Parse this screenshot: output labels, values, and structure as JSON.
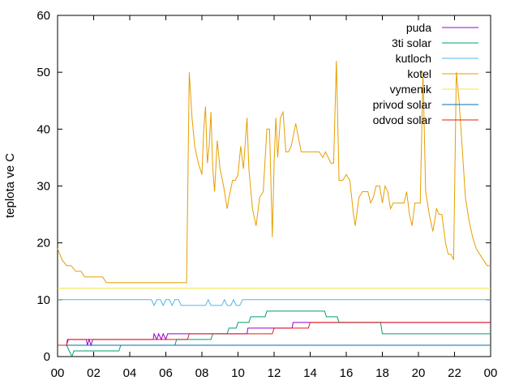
{
  "chart_data": {
    "type": "line",
    "ylabel": "teplota ve C",
    "xlabel": "",
    "title": "",
    "x_range_hours": [
      0,
      24
    ],
    "ylim": [
      0,
      60
    ],
    "x_tick_labels": [
      "00",
      "02",
      "04",
      "06",
      "08",
      "10",
      "12",
      "14",
      "16",
      "18",
      "20",
      "22",
      "00"
    ],
    "y_tick_labels": [
      "0",
      "10",
      "20",
      "30",
      "40",
      "50",
      "60"
    ],
    "grid": false,
    "legend_position": "top-right",
    "series": [
      {
        "name": "puda",
        "color": "#9400d3",
        "points": [
          [
            0.0,
            2
          ],
          [
            0.5,
            2
          ],
          [
            0.55,
            3
          ],
          [
            1.6,
            3
          ],
          [
            1.65,
            2
          ],
          [
            1.75,
            3
          ],
          [
            1.85,
            2
          ],
          [
            1.95,
            3
          ],
          [
            5.3,
            3
          ],
          [
            5.35,
            4
          ],
          [
            5.5,
            3
          ],
          [
            5.6,
            4
          ],
          [
            5.75,
            3
          ],
          [
            5.85,
            4
          ],
          [
            6.0,
            3
          ],
          [
            6.1,
            4
          ],
          [
            10.5,
            4
          ],
          [
            10.55,
            5
          ],
          [
            11.0,
            5
          ],
          [
            11.05,
            5
          ],
          [
            13.0,
            5
          ],
          [
            13.05,
            6
          ],
          [
            14.0,
            6
          ],
          [
            14.05,
            6
          ],
          [
            24.0,
            6
          ]
        ]
      },
      {
        "name": "3ti solar",
        "color": "#009e73",
        "points": [
          [
            0.0,
            2
          ],
          [
            0.5,
            2
          ],
          [
            0.8,
            0
          ],
          [
            0.9,
            1
          ],
          [
            3.4,
            1
          ],
          [
            3.5,
            2
          ],
          [
            6.5,
            2
          ],
          [
            6.6,
            3
          ],
          [
            8.5,
            3
          ],
          [
            8.6,
            4
          ],
          [
            9.4,
            4
          ],
          [
            9.5,
            5
          ],
          [
            9.9,
            5
          ],
          [
            10.0,
            6
          ],
          [
            10.6,
            6
          ],
          [
            10.7,
            7
          ],
          [
            11.5,
            7
          ],
          [
            11.6,
            8
          ],
          [
            14.8,
            8
          ],
          [
            14.9,
            7
          ],
          [
            15.5,
            7
          ],
          [
            15.6,
            6
          ],
          [
            17.9,
            6
          ],
          [
            18.0,
            4
          ],
          [
            24.0,
            4
          ]
        ]
      },
      {
        "name": "kutloch",
        "color": "#56b4e9",
        "points": [
          [
            0.0,
            10
          ],
          [
            5.2,
            10
          ],
          [
            5.35,
            9
          ],
          [
            5.5,
            10
          ],
          [
            5.7,
            10
          ],
          [
            5.85,
            9
          ],
          [
            6.0,
            10
          ],
          [
            6.2,
            10
          ],
          [
            6.35,
            9
          ],
          [
            6.5,
            10
          ],
          [
            6.7,
            10
          ],
          [
            6.85,
            9
          ],
          [
            8.2,
            9
          ],
          [
            8.35,
            10
          ],
          [
            8.5,
            9
          ],
          [
            9.1,
            9
          ],
          [
            9.25,
            10
          ],
          [
            9.4,
            9
          ],
          [
            9.6,
            9
          ],
          [
            9.75,
            10
          ],
          [
            9.9,
            9
          ],
          [
            10.1,
            9
          ],
          [
            10.25,
            10
          ],
          [
            10.4,
            10
          ],
          [
            24.0,
            10
          ]
        ]
      },
      {
        "name": "kotel",
        "color": "#e69f00",
        "points": [
          [
            0.0,
            19
          ],
          [
            0.25,
            17
          ],
          [
            0.5,
            16
          ],
          [
            0.75,
            16
          ],
          [
            1.0,
            15
          ],
          [
            1.3,
            15
          ],
          [
            1.5,
            14
          ],
          [
            2.3,
            14
          ],
          [
            2.5,
            14
          ],
          [
            2.7,
            13
          ],
          [
            3.5,
            13
          ],
          [
            7.0,
            13
          ],
          [
            7.15,
            13
          ],
          [
            7.3,
            50
          ],
          [
            7.45,
            42
          ],
          [
            7.6,
            37
          ],
          [
            7.8,
            34
          ],
          [
            8.0,
            32
          ],
          [
            8.1,
            40
          ],
          [
            8.2,
            44
          ],
          [
            8.3,
            34
          ],
          [
            8.4,
            37
          ],
          [
            8.5,
            43
          ],
          [
            8.6,
            33
          ],
          [
            8.7,
            29
          ],
          [
            8.85,
            38
          ],
          [
            9.0,
            33
          ],
          [
            9.2,
            30
          ],
          [
            9.4,
            26
          ],
          [
            9.5,
            28
          ],
          [
            9.7,
            31
          ],
          [
            9.85,
            31
          ],
          [
            10.0,
            32
          ],
          [
            10.15,
            37
          ],
          [
            10.3,
            33
          ],
          [
            10.5,
            42
          ],
          [
            10.6,
            33
          ],
          [
            10.8,
            26
          ],
          [
            11.0,
            23
          ],
          [
            11.2,
            28
          ],
          [
            11.4,
            29
          ],
          [
            11.6,
            40
          ],
          [
            11.75,
            40
          ],
          [
            11.9,
            21
          ],
          [
            12.0,
            34
          ],
          [
            12.1,
            42
          ],
          [
            12.2,
            35
          ],
          [
            12.35,
            42
          ],
          [
            12.5,
            43
          ],
          [
            12.65,
            36
          ],
          [
            12.8,
            36
          ],
          [
            12.95,
            37
          ],
          [
            13.2,
            41
          ],
          [
            13.5,
            36
          ],
          [
            14.0,
            36
          ],
          [
            14.5,
            36
          ],
          [
            14.7,
            35
          ],
          [
            14.85,
            36
          ],
          [
            15.0,
            35
          ],
          [
            15.15,
            34
          ],
          [
            15.3,
            34
          ],
          [
            15.45,
            52
          ],
          [
            15.6,
            31
          ],
          [
            15.8,
            31
          ],
          [
            16.0,
            32
          ],
          [
            16.2,
            31
          ],
          [
            16.4,
            25
          ],
          [
            16.5,
            23
          ],
          [
            16.7,
            28
          ],
          [
            16.9,
            29
          ],
          [
            17.2,
            29
          ],
          [
            17.35,
            27
          ],
          [
            17.5,
            28
          ],
          [
            17.65,
            30
          ],
          [
            17.85,
            30
          ],
          [
            18.0,
            27
          ],
          [
            18.15,
            30
          ],
          [
            18.3,
            29
          ],
          [
            18.45,
            26
          ],
          [
            18.6,
            27
          ],
          [
            19.0,
            27
          ],
          [
            19.2,
            27
          ],
          [
            19.35,
            29
          ],
          [
            19.5,
            25
          ],
          [
            19.65,
            23
          ],
          [
            19.8,
            27
          ],
          [
            20.1,
            27
          ],
          [
            20.25,
            50
          ],
          [
            20.4,
            29
          ],
          [
            20.6,
            25
          ],
          [
            20.8,
            22
          ],
          [
            21.0,
            26
          ],
          [
            21.15,
            25
          ],
          [
            21.3,
            25
          ],
          [
            21.5,
            20
          ],
          [
            21.65,
            18
          ],
          [
            21.8,
            18
          ],
          [
            21.95,
            17
          ],
          [
            22.1,
            50
          ],
          [
            22.25,
            45
          ],
          [
            22.4,
            38
          ],
          [
            22.6,
            28
          ],
          [
            22.8,
            24
          ],
          [
            23.0,
            21
          ],
          [
            23.2,
            19
          ],
          [
            23.4,
            18
          ],
          [
            23.6,
            17
          ],
          [
            23.8,
            16
          ],
          [
            24.0,
            16
          ]
        ]
      },
      {
        "name": "vymenik",
        "color": "#f0e442",
        "points": [
          [
            0.0,
            12
          ],
          [
            24.0,
            12
          ]
        ]
      },
      {
        "name": "privod solar",
        "color": "#0072b2",
        "points": [
          [
            0.0,
            2
          ],
          [
            24.0,
            2
          ]
        ]
      },
      {
        "name": "odvod solar",
        "color": "#e51e10",
        "points": [
          [
            0.0,
            2
          ],
          [
            0.5,
            2
          ],
          [
            0.6,
            3
          ],
          [
            7.2,
            3
          ],
          [
            7.3,
            4
          ],
          [
            11.9,
            4
          ],
          [
            12.0,
            5
          ],
          [
            13.9,
            5
          ],
          [
            14.0,
            6
          ],
          [
            24.0,
            6
          ]
        ]
      }
    ]
  }
}
